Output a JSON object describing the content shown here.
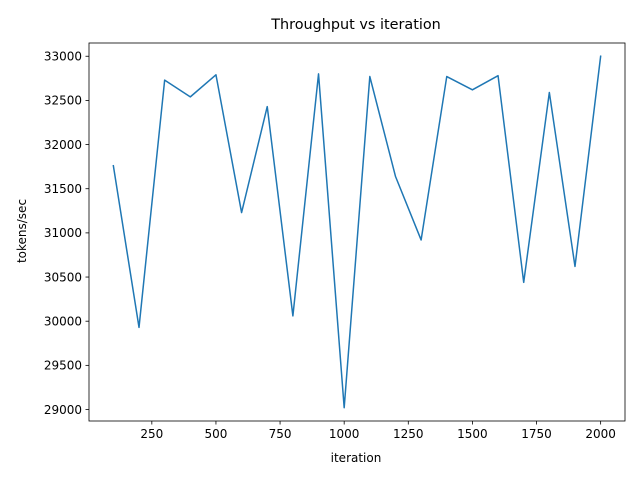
{
  "chart_data": {
    "type": "line",
    "title": "Throughput vs iteration",
    "xlabel": "iteration",
    "ylabel": "tokens/sec",
    "xlim": [
      5,
      2095
    ],
    "ylim": [
      28870,
      33150
    ],
    "xticks": [
      250,
      500,
      750,
      1000,
      1250,
      1500,
      1750,
      2000
    ],
    "xtick_labels": [
      "250",
      "500",
      "750",
      "1000",
      "1250",
      "1500",
      "1750",
      "2000"
    ],
    "yticks": [
      29000,
      29500,
      30000,
      30500,
      31000,
      31500,
      32000,
      32500,
      33000
    ],
    "ytick_labels": [
      "29000",
      "29500",
      "30000",
      "30500",
      "31000",
      "31500",
      "32000",
      "32500",
      "33000"
    ],
    "grid": false,
    "series": [
      {
        "color": "#1f77b4",
        "x": [
          100,
          200,
          300,
          400,
          500,
          600,
          700,
          800,
          900,
          1000,
          1100,
          1200,
          1300,
          1400,
          1500,
          1600,
          1700,
          1800,
          1900,
          2000
        ],
        "y": [
          31760,
          29930,
          32730,
          32540,
          32790,
          31230,
          32430,
          30060,
          32800,
          29020,
          32770,
          31640,
          30920,
          32770,
          32620,
          32780,
          30440,
          32590,
          30620,
          33000
        ]
      }
    ]
  }
}
